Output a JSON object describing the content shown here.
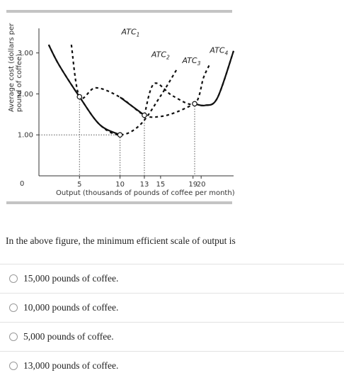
{
  "question": "In the above figure, the minimum efficient scale of output is",
  "options": [
    {
      "label": "15,000 pounds of coffee."
    },
    {
      "label": "10,000 pounds of coffee."
    },
    {
      "label": "5,000 pounds of coffee."
    },
    {
      "label": "13,000 pounds of coffee."
    }
  ],
  "colors": {
    "rule": "#c4c4c4",
    "curve": "#111111",
    "guide": "#555555",
    "point_fill": "#ffffff"
  },
  "chart_data": {
    "type": "line",
    "title": "",
    "ylabel": "Average cost (dollars per pound of coffee)",
    "ylabel_lines": [
      "Average cost (dollars per",
      "pound of coffee)"
    ],
    "xlabel": "Output (thousands of pounds of coffee per month)",
    "origin_label": "0",
    "xlim": [
      0,
      24
    ],
    "ylim": [
      0,
      3.6
    ],
    "x_ticks": [
      {
        "value": 5,
        "label": "5"
      },
      {
        "value": 10,
        "label": "10"
      },
      {
        "value": 13,
        "label": "13"
      },
      {
        "value": 15,
        "label": "15"
      },
      {
        "value": 19,
        "label": "19"
      },
      {
        "value": 20,
        "label": "20"
      }
    ],
    "y_ticks": [
      {
        "value": 1,
        "label": "1.00"
      },
      {
        "value": 2,
        "label": "2.00"
      },
      {
        "value": 3,
        "label": "3.00"
      }
    ],
    "series": [
      {
        "name": "ATC₁",
        "label_main": "ATC",
        "label_sub": "1",
        "points": [
          [
            1.2,
            3.2
          ],
          [
            2.5,
            2.7
          ],
          [
            5,
            1.93
          ],
          [
            7.5,
            1.25
          ],
          [
            10,
            1.0
          ],
          [
            12.5,
            1.25
          ],
          [
            15,
            1.95
          ],
          [
            17,
            2.6
          ]
        ],
        "solid_range": [
          1.2,
          10
        ],
        "label_pos": [
          11.3,
          3.45
        ]
      },
      {
        "name": "ATC₂",
        "label_main": "ATC",
        "label_sub": "2",
        "points": [
          [
            4,
            3.2
          ],
          [
            5,
            1.93
          ],
          [
            7,
            2.15
          ],
          [
            10,
            1.92
          ],
          [
            13,
            1.48
          ],
          [
            15,
            1.45
          ],
          [
            17,
            1.56
          ],
          [
            19.2,
            1.76
          ]
        ],
        "solid_range": [
          10,
          13
        ],
        "label_pos": [
          15,
          2.9
        ]
      },
      {
        "name": "ATC₃",
        "label_main": "ATC",
        "label_sub": "3",
        "points": [
          [
            13,
            1.48
          ],
          [
            14.2,
            2.25
          ],
          [
            16.5,
            1.95
          ],
          [
            19.2,
            1.76
          ],
          [
            20.3,
            2.4
          ],
          [
            21,
            2.7
          ]
        ],
        "solid_range": null,
        "label_pos": [
          18.8,
          2.75
        ]
      },
      {
        "name": "ATC₄",
        "label_main": "ATC",
        "label_sub": "4",
        "points": [
          [
            19.2,
            1.76
          ],
          [
            20.5,
            1.72
          ],
          [
            22,
            1.9
          ],
          [
            24,
            3.05
          ]
        ],
        "solid_range": [
          19.2,
          24
        ],
        "label_pos": [
          22.2,
          3.0
        ]
      }
    ],
    "marked_points": [
      {
        "x": 5,
        "y": 1.93
      },
      {
        "x": 10,
        "y": 1.0
      },
      {
        "x": 13,
        "y": 1.48
      },
      {
        "x": 19.2,
        "y": 1.76
      }
    ]
  }
}
